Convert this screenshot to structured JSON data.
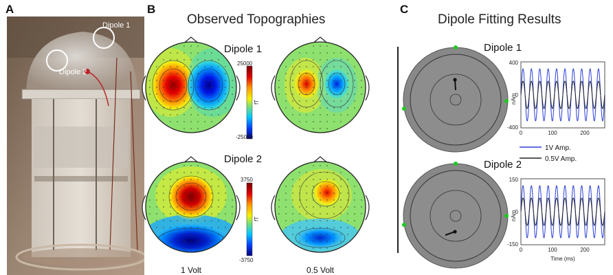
{
  "panels": {
    "a": {
      "letter": "A",
      "circle_label_1": "Dipole 1",
      "circle_label_2": "Dipole 2"
    },
    "b": {
      "letter": "B",
      "title": "Observed Topographies",
      "dipole1": {
        "label": "Dipole 1",
        "colorbar": {
          "max": "25000",
          "min": "-25000",
          "unit": "fT"
        }
      },
      "dipole2": {
        "label": "Dipole 2",
        "colorbar": {
          "max": "3750",
          "min": "-3750",
          "unit": "fT"
        }
      },
      "col1_label": "1 Volt",
      "col2_label": "0.5 Volt"
    },
    "c": {
      "letter": "C",
      "title": "Dipole Fitting Results",
      "dipole1": {
        "label": "Dipole 1",
        "y_max": "400",
        "y_zero": "0",
        "y_min": "-400",
        "y_unit": "nAm"
      },
      "dipole2": {
        "label": "Dipole 2",
        "y_max": "150",
        "y_zero": "0",
        "y_min": "-150",
        "y_unit": "nAm"
      },
      "x_ticks": [
        "0",
        "100",
        "200"
      ],
      "x_label": "Time (ms)",
      "legend": [
        {
          "label": "1V Amp.",
          "color": "#2b3fd6"
        },
        {
          "label": "0.5V Amp.",
          "color": "#222222"
        }
      ]
    }
  }
}
